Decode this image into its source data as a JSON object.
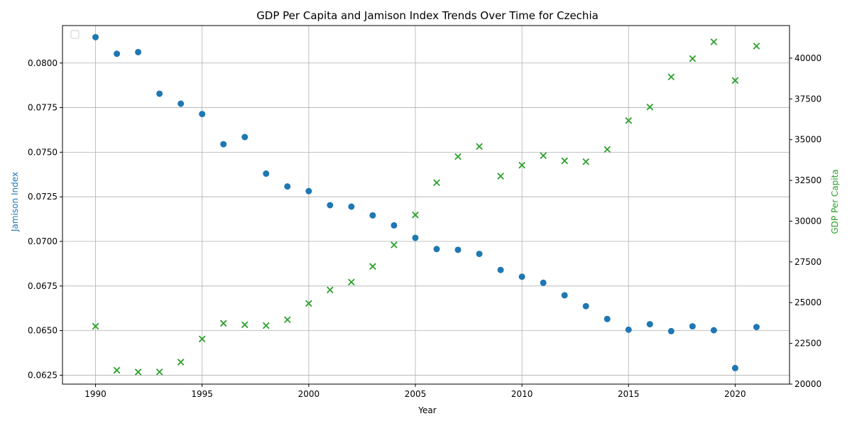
{
  "chart_data": {
    "type": "scatter",
    "title": "GDP Per Capita and Jamison Index Trends Over Time for Czechia",
    "xlabel": "Year",
    "ylabel_left": "Jamison Index",
    "ylabel_right": "GDP Per Capita",
    "xlim": [
      1988.45,
      2022.55
    ],
    "ylim_left": [
      0.062,
      0.0821
    ],
    "ylim_right": [
      20000,
      42000
    ],
    "x_ticks": [
      1990,
      1995,
      2000,
      2005,
      2010,
      2015,
      2020
    ],
    "y_ticks_left": [
      0.0625,
      0.065,
      0.0675,
      0.07,
      0.0725,
      0.075,
      0.0775,
      0.08
    ],
    "y_tick_labels_left": [
      "0.0625",
      "0.0650",
      "0.0675",
      "0.0700",
      "0.0725",
      "0.0750",
      "0.0775",
      "0.0800"
    ],
    "y_ticks_right": [
      20000,
      22500,
      25000,
      27500,
      30000,
      32500,
      35000,
      37500,
      40000
    ],
    "y_tick_labels_right": [
      "20000",
      "22500",
      "25000",
      "27500",
      "30000",
      "32500",
      "35000",
      "37500",
      "40000"
    ],
    "grid": true,
    "legend_position": "top-left",
    "colors": {
      "jamison": "#1f77b4",
      "gdp": "#2ca02c",
      "grid": "#b0b0b0"
    },
    "series": [
      {
        "key": "jamison",
        "axis": "left",
        "marker": "circle",
        "x": [
          1990,
          1991,
          1992,
          1993,
          1994,
          1995,
          1996,
          1997,
          1998,
          1999,
          2000,
          2001,
          2002,
          2003,
          2004,
          2005,
          2006,
          2007,
          2008,
          2009,
          2010,
          2011,
          2012,
          2013,
          2014,
          2015,
          2016,
          2017,
          2018,
          2019,
          2020,
          2021
        ],
        "y": [
          0.08145,
          0.08052,
          0.08061,
          0.07828,
          0.07772,
          0.07714,
          0.07545,
          0.07585,
          0.0738,
          0.07308,
          0.07282,
          0.07203,
          0.07195,
          0.07146,
          0.0709,
          0.0702,
          0.06957,
          0.06953,
          0.0693,
          0.0684,
          0.06802,
          0.06768,
          0.06698,
          0.06637,
          0.06565,
          0.06505,
          0.06536,
          0.06497,
          0.06524,
          0.06502,
          0.0629,
          0.0652
        ]
      },
      {
        "key": "gdp",
        "axis": "right",
        "marker": "x",
        "x": [
          1990,
          1991,
          1992,
          1993,
          1994,
          1995,
          1996,
          1997,
          1998,
          1999,
          2000,
          2001,
          2002,
          2003,
          2004,
          2005,
          2006,
          2007,
          2008,
          2009,
          2010,
          2011,
          2012,
          2013,
          2014,
          2015,
          2016,
          2017,
          2018,
          2019,
          2020,
          2021
        ],
        "y": [
          23550,
          20850,
          20740,
          20750,
          21350,
          22770,
          23730,
          23640,
          23590,
          23950,
          24950,
          25780,
          26260,
          27220,
          28540,
          30380,
          32360,
          33960,
          34580,
          32760,
          33430,
          34020,
          33700,
          33650,
          34400,
          36170,
          37000,
          38850,
          39970,
          41000,
          38630,
          40740
        ]
      }
    ]
  }
}
